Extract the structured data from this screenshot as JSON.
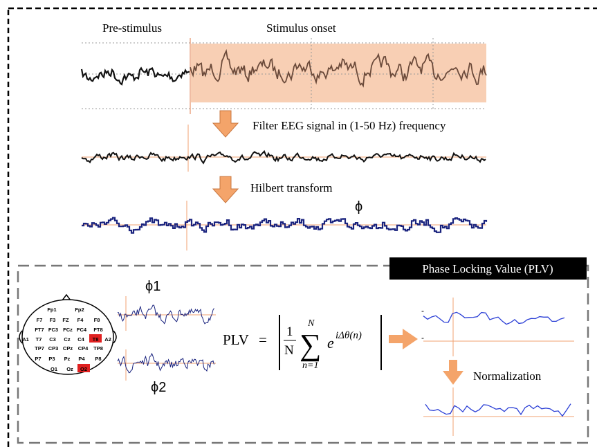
{
  "header": {
    "pre_stimulus": "Pre-stimulus",
    "stimulus_onset": "Stimulus onset"
  },
  "steps": {
    "filter": "Filter EEG signal in (1-50 Hz) frequency",
    "hilbert": "Hilbert transform",
    "phase": "ϕ"
  },
  "plv_panel": {
    "title": "Phase Locking Value (PLV)",
    "phi1": "ϕ1",
    "phi2": "ϕ2",
    "normalization": "Normalization"
  },
  "formula": {
    "lhs": "PLV",
    "eq": "=",
    "num": "1",
    "den": "N",
    "upper": "N",
    "lower": "n=1",
    "base": "e",
    "exponent": "iΔθ(n)"
  },
  "electrodes": [
    {
      "label": "Fp1",
      "highlighted": false
    },
    {
      "label": "Fp2",
      "highlighted": false
    },
    {
      "label": "F7",
      "highlighted": false
    },
    {
      "label": "F3",
      "highlighted": false
    },
    {
      "label": "FZ",
      "highlighted": false
    },
    {
      "label": "F4",
      "highlighted": false
    },
    {
      "label": "F8",
      "highlighted": false
    },
    {
      "label": "FT7",
      "highlighted": false
    },
    {
      "label": "FC3",
      "highlighted": false
    },
    {
      "label": "FCz",
      "highlighted": false
    },
    {
      "label": "FC4",
      "highlighted": false
    },
    {
      "label": "FT8",
      "highlighted": false
    },
    {
      "label": "A1",
      "highlighted": false
    },
    {
      "label": "T7",
      "highlighted": false
    },
    {
      "label": "C3",
      "highlighted": false
    },
    {
      "label": "Cz",
      "highlighted": false
    },
    {
      "label": "C4",
      "highlighted": false
    },
    {
      "label": "T8",
      "highlighted": true
    },
    {
      "label": "A2",
      "highlighted": false
    },
    {
      "label": "TP7",
      "highlighted": false
    },
    {
      "label": "CP3",
      "highlighted": false
    },
    {
      "label": "CPz",
      "highlighted": false
    },
    {
      "label": "CP4",
      "highlighted": false
    },
    {
      "label": "TP8",
      "highlighted": false
    },
    {
      "label": "P7",
      "highlighted": false
    },
    {
      "label": "P3",
      "highlighted": false
    },
    {
      "label": "Pz",
      "highlighted": false
    },
    {
      "label": "P4",
      "highlighted": false
    },
    {
      "label": "P8",
      "highlighted": false
    },
    {
      "label": "O1",
      "highlighted": false
    },
    {
      "label": "Oz",
      "highlighted": false
    },
    {
      "label": "O2",
      "highlighted": true
    }
  ]
}
